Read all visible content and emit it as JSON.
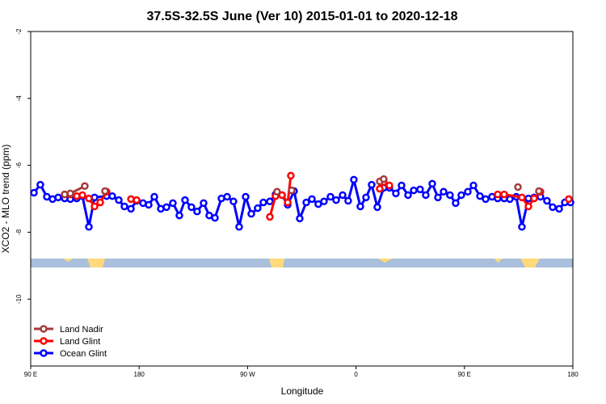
{
  "chart_data": {
    "type": "line",
    "title": "37.5S-32.5S June (Ver 10)   2015-01-01 to 2020-12-18",
    "x_label": "Longitude",
    "y_label": "XCO2 - MLO trend (ppm)",
    "xlim": [
      90,
      540
    ],
    "xticks": [
      {
        "value": 90,
        "label": "90 E"
      },
      {
        "value": 180,
        "label": "180"
      },
      {
        "value": 270,
        "label": "90 W"
      },
      {
        "value": 360,
        "label": "0"
      },
      {
        "value": 450,
        "label": "90 E"
      },
      {
        "value": 540,
        "label": "180"
      }
    ],
    "ylim": [
      -12,
      -2
    ],
    "yticks": [
      -2,
      -4,
      -6,
      -8,
      -10
    ],
    "legend": "lower left",
    "series": [
      {
        "name": "Land Nadir",
        "color": "#a33a3a",
        "x": [
          118.2,
          122.9,
          134.9,
          null,
          151.7,
          null,
          294.5,
          null,
          306.6,
          null,
          379.7,
          383.0,
          null,
          494.4,
          null,
          511.8
        ],
        "values": [
          -6.87,
          -6.84,
          -6.62,
          null,
          -6.77,
          null,
          -6.79,
          null,
          -6.75,
          null,
          -6.48,
          -6.41,
          null,
          -6.65,
          null,
          -6.77
        ]
      },
      {
        "name": "Land Glint",
        "color": "#ff0000",
        "x": [
          118.2,
          122.9,
          128.2,
          132.9,
          138.3,
          143.0,
          147.7,
          153.0,
          null,
          173.2,
          177.9,
          null,
          288.5,
          293.2,
          298.6,
          303.3,
          305.9,
          null,
          379.7,
          383.0,
          387.7,
          null,
          477.6,
          483.0,
          497.7,
          503.1,
          507.8,
          513.1,
          null,
          536.6
        ],
        "values": [
          -6.87,
          -6.87,
          -6.92,
          -6.89,
          -6.99,
          -7.23,
          -7.11,
          -6.79,
          null,
          -7.01,
          -7.04,
          null,
          -7.54,
          -6.92,
          -6.89,
          -7.11,
          -6.31,
          null,
          -6.7,
          -6.5,
          -6.6,
          null,
          -6.87,
          -6.87,
          -6.96,
          -7.23,
          -6.99,
          -6.79,
          null,
          -7.01
        ]
      },
      {
        "name": "Ocean Glint",
        "color": "#0000ff",
        "x": [
          92.7,
          98.0,
          103.4,
          108.1,
          112.8,
          118.2,
          122.9,
          128.2,
          132.9,
          138.3,
          143.0,
          153.0,
          157.7,
          163.1,
          167.8,
          173.2,
          177.9,
          183.2,
          187.9,
          192.6,
          198.0,
          202.7,
          208.0,
          213.4,
          218.1,
          223.4,
          228.1,
          233.5,
          238.2,
          242.9,
          248.3,
          253.0,
          258.3,
          263.0,
          268.4,
          273.1,
          278.4,
          283.1,
          288.5,
          293.2,
          298.6,
          303.3,
          308.6,
          313.3,
          318.7,
          323.4,
          328.7,
          333.4,
          338.8,
          343.5,
          348.9,
          353.5,
          358.2,
          363.6,
          368.3,
          373.0,
          377.7,
          383.0,
          387.7,
          393.1,
          397.8,
          403.2,
          407.9,
          413.2,
          417.9,
          423.3,
          428.0,
          432.7,
          438.0,
          442.7,
          447.4,
          452.8,
          457.5,
          462.9,
          467.6,
          472.9,
          477.6,
          483.0,
          487.7,
          493.0,
          497.7,
          503.1,
          507.8,
          513.1,
          518.5,
          523.2,
          528.6,
          533.3,
          538.0
        ],
        "values": [
          -6.82,
          -6.58,
          -6.94,
          -7.01,
          -6.96,
          -6.99,
          -7.01,
          -6.99,
          -6.92,
          -7.84,
          -6.96,
          -6.92,
          -6.92,
          -7.04,
          -7.23,
          -7.3,
          -7.06,
          -7.13,
          -7.18,
          -6.94,
          -7.3,
          -7.25,
          -7.13,
          -7.5,
          -7.04,
          -7.25,
          -7.38,
          -7.13,
          -7.5,
          -7.57,
          -6.99,
          -6.94,
          -7.08,
          -7.84,
          -6.94,
          -7.45,
          -7.28,
          -7.11,
          -7.08,
          -6.87,
          -6.89,
          -7.18,
          -6.77,
          -7.59,
          -7.11,
          -7.01,
          -7.16,
          -7.08,
          -6.94,
          -7.04,
          -6.89,
          -7.06,
          -6.43,
          -7.23,
          -6.96,
          -6.58,
          -7.25,
          -6.67,
          -6.67,
          -6.84,
          -6.6,
          -6.89,
          -6.75,
          -6.72,
          -6.89,
          -6.55,
          -6.96,
          -6.79,
          -6.89,
          -7.13,
          -6.89,
          -6.79,
          -6.6,
          -6.92,
          -7.01,
          -6.94,
          -6.99,
          -6.99,
          -7.01,
          -6.94,
          -7.84,
          -6.99,
          -6.96,
          -6.94,
          -7.06,
          -7.25,
          -7.3,
          -7.11,
          -7.11
        ]
      }
    ]
  }
}
